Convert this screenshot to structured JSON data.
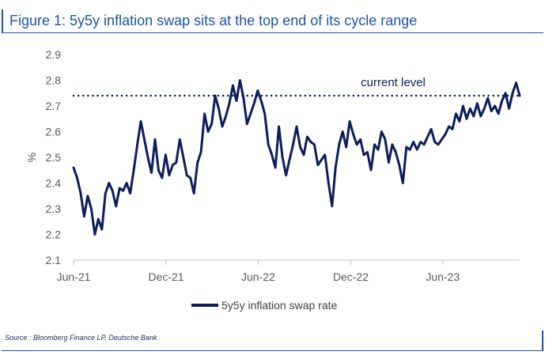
{
  "title": "Figure 1: 5y5y inflation swap sits at the top end of its cycle range",
  "source": "Source : Bloomberg Finance LP, Deutsche Bank",
  "colors": {
    "accent": "#1a56a6",
    "series": "#0c1e5b"
  },
  "chart_data": {
    "type": "line",
    "title": "",
    "xlabel": "",
    "ylabel": "%",
    "ylim": [
      2.1,
      2.9
    ],
    "yticks": [
      "2.1",
      "2.2",
      "2.3",
      "2.4",
      "2.5",
      "2.6",
      "2.7",
      "2.8",
      "2.9"
    ],
    "xlim": [
      "2021-06-01",
      "2023-10-31"
    ],
    "xticks": [
      {
        "date": "2021-06-01",
        "label": "Jun-21"
      },
      {
        "date": "2021-12-01",
        "label": "Dec-21"
      },
      {
        "date": "2022-06-01",
        "label": "Jun-22"
      },
      {
        "date": "2022-12-01",
        "label": "Dec-22"
      },
      {
        "date": "2023-06-01",
        "label": "Jun-23"
      }
    ],
    "grid": false,
    "legend": "bottom",
    "reference_line": {
      "value": 2.74,
      "label": "current level",
      "style": "dotted"
    },
    "series": [
      {
        "name": "5y5y inflation swap rate",
        "x": [
          "2021-06-01",
          "2021-06-08",
          "2021-06-15",
          "2021-06-22",
          "2021-06-29",
          "2021-07-06",
          "2021-07-13",
          "2021-07-20",
          "2021-07-27",
          "2021-08-03",
          "2021-08-10",
          "2021-08-17",
          "2021-08-24",
          "2021-08-31",
          "2021-09-07",
          "2021-09-14",
          "2021-09-21",
          "2021-09-28",
          "2021-10-05",
          "2021-10-12",
          "2021-10-19",
          "2021-10-26",
          "2021-11-02",
          "2021-11-09",
          "2021-11-16",
          "2021-11-23",
          "2021-11-30",
          "2021-12-07",
          "2021-12-14",
          "2021-12-21",
          "2021-12-28",
          "2022-01-04",
          "2022-01-11",
          "2022-01-18",
          "2022-01-25",
          "2022-02-01",
          "2022-02-08",
          "2022-02-15",
          "2022-02-22",
          "2022-03-01",
          "2022-03-08",
          "2022-03-15",
          "2022-03-22",
          "2022-03-29",
          "2022-04-05",
          "2022-04-12",
          "2022-04-19",
          "2022-04-26",
          "2022-05-03",
          "2022-05-10",
          "2022-05-17",
          "2022-05-24",
          "2022-05-31",
          "2022-06-07",
          "2022-06-14",
          "2022-06-21",
          "2022-06-28",
          "2022-07-05",
          "2022-07-12",
          "2022-07-19",
          "2022-07-26",
          "2022-08-02",
          "2022-08-09",
          "2022-08-16",
          "2022-08-23",
          "2022-08-30",
          "2022-09-06",
          "2022-09-13",
          "2022-09-20",
          "2022-09-27",
          "2022-10-04",
          "2022-10-11",
          "2022-10-18",
          "2022-10-25",
          "2022-11-01",
          "2022-11-08",
          "2022-11-15",
          "2022-11-22",
          "2022-11-29",
          "2022-12-06",
          "2022-12-13",
          "2022-12-20",
          "2022-12-27",
          "2023-01-03",
          "2023-01-10",
          "2023-01-17",
          "2023-01-24",
          "2023-01-31",
          "2023-02-07",
          "2023-02-14",
          "2023-02-21",
          "2023-02-28",
          "2023-03-07",
          "2023-03-14",
          "2023-03-21",
          "2023-03-28",
          "2023-04-04",
          "2023-04-11",
          "2023-04-18",
          "2023-04-25",
          "2023-05-02",
          "2023-05-09",
          "2023-05-16",
          "2023-05-23",
          "2023-05-30",
          "2023-06-06",
          "2023-06-13",
          "2023-06-20",
          "2023-06-27",
          "2023-07-04",
          "2023-07-11",
          "2023-07-18",
          "2023-07-25",
          "2023-08-01",
          "2023-08-08",
          "2023-08-15",
          "2023-08-22",
          "2023-08-29",
          "2023-09-05",
          "2023-09-12",
          "2023-09-19",
          "2023-09-26",
          "2023-10-03",
          "2023-10-10",
          "2023-10-17",
          "2023-10-24",
          "2023-10-31"
        ],
        "values": [
          2.46,
          2.42,
          2.36,
          2.27,
          2.35,
          2.3,
          2.2,
          2.26,
          2.22,
          2.36,
          2.4,
          2.37,
          2.31,
          2.38,
          2.37,
          2.4,
          2.36,
          2.45,
          2.55,
          2.64,
          2.57,
          2.5,
          2.44,
          2.57,
          2.45,
          2.42,
          2.51,
          2.43,
          2.47,
          2.48,
          2.57,
          2.5,
          2.43,
          2.42,
          2.36,
          2.48,
          2.52,
          2.67,
          2.6,
          2.63,
          2.74,
          2.69,
          2.62,
          2.66,
          2.71,
          2.78,
          2.72,
          2.8,
          2.73,
          2.63,
          2.67,
          2.71,
          2.76,
          2.72,
          2.67,
          2.55,
          2.51,
          2.46,
          2.62,
          2.5,
          2.43,
          2.49,
          2.55,
          2.62,
          2.54,
          2.51,
          2.58,
          2.56,
          2.55,
          2.47,
          2.49,
          2.51,
          2.4,
          2.31,
          2.46,
          2.55,
          2.6,
          2.54,
          2.64,
          2.59,
          2.55,
          2.57,
          2.51,
          2.52,
          2.45,
          2.55,
          2.53,
          2.6,
          2.57,
          2.48,
          2.55,
          2.52,
          2.47,
          2.4,
          2.54,
          2.53,
          2.56,
          2.53,
          2.56,
          2.55,
          2.58,
          2.61,
          2.56,
          2.55,
          2.57,
          2.59,
          2.62,
          2.61,
          2.67,
          2.64,
          2.7,
          2.65,
          2.69,
          2.66,
          2.71,
          2.66,
          2.69,
          2.73,
          2.68,
          2.7,
          2.67,
          2.72,
          2.75,
          2.69,
          2.75,
          2.79,
          2.74
        ]
      }
    ]
  }
}
